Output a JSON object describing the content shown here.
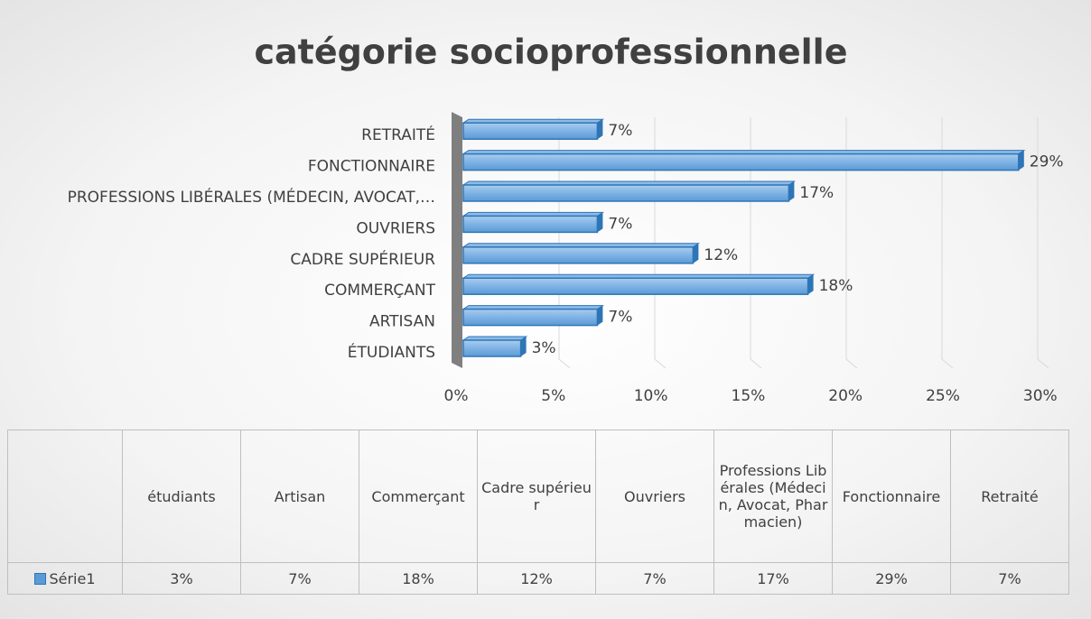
{
  "chart_data": {
    "type": "bar",
    "orientation": "horizontal",
    "title": "catégorie socioprofessionnelle",
    "categories": [
      "étudiants",
      "Artisan",
      "Commerçant",
      "Cadre supérieur",
      "Ouvriers",
      "Professions Libérales (Médecin, Avocat, Pharmacien)",
      "Fonctionnaire",
      "Retraité"
    ],
    "axis_labels": [
      "ÉTUDIANTS",
      "ARTISAN",
      "COMMERÇANT",
      "CADRE SUPÉRIEUR",
      "OUVRIERS",
      "PROFESSIONS LIBÉRALES (MÉDECIN, AVOCAT,…",
      "FONCTIONNAIRE",
      "RETRAITÉ"
    ],
    "series": [
      {
        "name": "Série1",
        "color": "#5b9bd5",
        "values": [
          3,
          7,
          18,
          12,
          7,
          17,
          29,
          7
        ],
        "value_labels": [
          "3%",
          "7%",
          "18%",
          "12%",
          "7%",
          "17%",
          "29%",
          "7%"
        ]
      }
    ],
    "xlim": [
      0,
      30
    ],
    "xticks": [
      {
        "value": 0,
        "label": "0%"
      },
      {
        "value": 5,
        "label": "5%"
      },
      {
        "value": 10,
        "label": "10%"
      },
      {
        "value": 15,
        "label": "15%"
      },
      {
        "value": 20,
        "label": "20%"
      },
      {
        "value": 25,
        "label": "25%"
      },
      {
        "value": 30,
        "label": "30%"
      }
    ],
    "grid": true,
    "data_table": true
  }
}
